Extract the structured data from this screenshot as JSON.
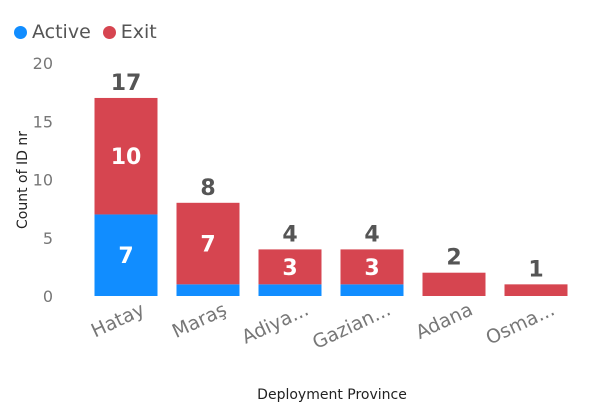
{
  "chart_data": {
    "type": "bar",
    "stacked": true,
    "categories": [
      "Hatay",
      "Maraş",
      "Adiya...",
      "Gazian...",
      "Adana",
      "Osma..."
    ],
    "series": [
      {
        "name": "Active",
        "color": "#118DFF",
        "values": [
          7,
          1,
          1,
          1,
          0,
          0
        ],
        "data_labels": [
          "7",
          "",
          "",
          "",
          "",
          ""
        ]
      },
      {
        "name": "Exit",
        "color": "#D64550",
        "values": [
          10,
          7,
          3,
          3,
          2,
          1
        ],
        "data_labels": [
          "10",
          "7",
          "3",
          "3",
          "",
          ""
        ]
      }
    ],
    "totals": [
      17,
      8,
      4,
      4,
      2,
      1
    ],
    "xlabel": "Deployment Province",
    "ylabel": "Count of ID nr",
    "ylim": [
      0,
      20
    ],
    "yticks": [
      "0",
      "5",
      "10",
      "15",
      "20"
    ],
    "legend_position": "top-left",
    "grid": false
  }
}
